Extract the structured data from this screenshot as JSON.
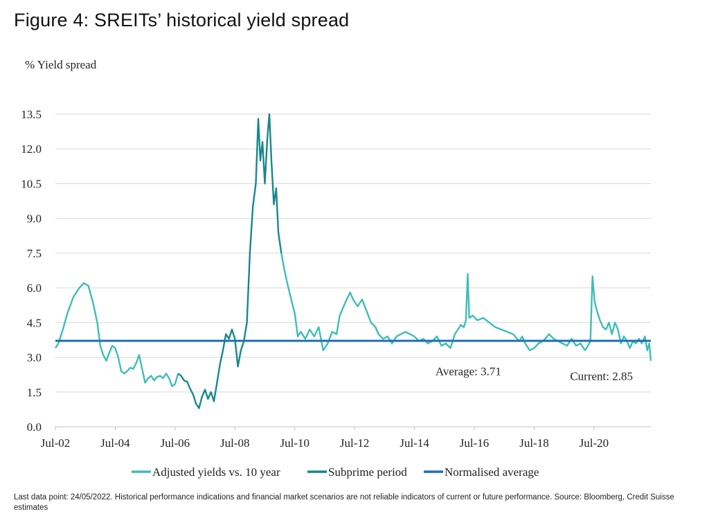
{
  "title": "Figure 4: SREITs’ historical yield spread",
  "footnote": "Last data point: 24/05/2022. Historical performance indications and financial market scenarios are not reliable indicators of current or future performance. Source: Bloomberg, Credit Suisse estimates",
  "colors": {
    "adjusted": "#3dbdb5",
    "subprime": "#17878a",
    "average": "#1f6fb5",
    "grid": "#d9d9d9"
  },
  "chart_data": {
    "type": "line",
    "ylabel": "% Yield spread",
    "ylim": [
      0,
      13.5
    ],
    "yticks": [
      "0.0",
      "1.5",
      "3.0",
      "4.5",
      "6.0",
      "7.5",
      "9.0",
      "10.5",
      "12.0",
      "13.5"
    ],
    "xlim": [
      2002.5,
      2022.4
    ],
    "xticks": [
      {
        "label": "Jul-02",
        "x": 2002.5
      },
      {
        "label": "Jul-04",
        "x": 2004.5
      },
      {
        "label": "Jul-06",
        "x": 2006.5
      },
      {
        "label": "Jul-08",
        "x": 2008.5
      },
      {
        "label": "Jul-10",
        "x": 2010.5
      },
      {
        "label": "Jul-12",
        "x": 2012.5
      },
      {
        "label": "Jul-14",
        "x": 2014.5
      },
      {
        "label": "Jul-16",
        "x": 2016.5
      },
      {
        "label": "Jul-18",
        "x": 2018.5
      },
      {
        "label": "Jul-20",
        "x": 2020.5
      }
    ],
    "grid": true,
    "legend_position": "bottom",
    "annotations": [
      {
        "text": "Average: 3.71",
        "x": 2015.2,
        "y": 2.4
      },
      {
        "text": "Current: 2.85",
        "x": 2019.7,
        "y": 2.2
      }
    ],
    "series": [
      {
        "name": "Adjusted yields vs. 10 year",
        "points": [
          [
            2002.5,
            3.4
          ],
          [
            2002.6,
            3.6
          ],
          [
            2002.75,
            4.2
          ],
          [
            2002.9,
            4.9
          ],
          [
            2003.1,
            5.6
          ],
          [
            2003.3,
            6.0
          ],
          [
            2003.45,
            6.2
          ],
          [
            2003.6,
            6.1
          ],
          [
            2003.75,
            5.4
          ],
          [
            2003.9,
            4.5
          ],
          [
            2004.0,
            3.5
          ],
          [
            2004.1,
            3.1
          ],
          [
            2004.2,
            2.85
          ],
          [
            2004.3,
            3.2
          ],
          [
            2004.4,
            3.5
          ],
          [
            2004.5,
            3.4
          ],
          [
            2004.6,
            3.0
          ],
          [
            2004.7,
            2.4
          ],
          [
            2004.8,
            2.3
          ],
          [
            2004.9,
            2.4
          ],
          [
            2005.0,
            2.55
          ],
          [
            2005.1,
            2.5
          ],
          [
            2005.2,
            2.75
          ],
          [
            2005.3,
            3.1
          ],
          [
            2005.4,
            2.5
          ],
          [
            2005.5,
            1.9
          ],
          [
            2005.6,
            2.1
          ],
          [
            2005.7,
            2.2
          ],
          [
            2005.8,
            2.0
          ],
          [
            2005.9,
            2.15
          ],
          [
            2006.0,
            2.2
          ],
          [
            2006.1,
            2.1
          ],
          [
            2006.2,
            2.3
          ],
          [
            2006.3,
            2.1
          ],
          [
            2006.4,
            1.75
          ],
          [
            2006.5,
            1.85
          ],
          [
            2006.6,
            2.3
          ]
        ]
      },
      {
        "name": "Subprime period",
        "points": [
          [
            2006.6,
            2.3
          ],
          [
            2006.7,
            2.2
          ],
          [
            2006.8,
            2.0
          ],
          [
            2006.9,
            1.95
          ],
          [
            2007.0,
            1.65
          ],
          [
            2007.1,
            1.4
          ],
          [
            2007.2,
            1.0
          ],
          [
            2007.3,
            0.8
          ],
          [
            2007.4,
            1.3
          ],
          [
            2007.5,
            1.6
          ],
          [
            2007.6,
            1.2
          ],
          [
            2007.7,
            1.5
          ],
          [
            2007.8,
            1.1
          ],
          [
            2007.9,
            1.9
          ],
          [
            2008.0,
            2.7
          ],
          [
            2008.1,
            3.3
          ],
          [
            2008.2,
            4.0
          ],
          [
            2008.3,
            3.8
          ],
          [
            2008.4,
            4.2
          ],
          [
            2008.5,
            3.8
          ],
          [
            2008.6,
            2.6
          ],
          [
            2008.7,
            3.3
          ],
          [
            2008.8,
            3.7
          ],
          [
            2008.9,
            4.5
          ],
          [
            2009.0,
            7.5
          ],
          [
            2009.1,
            9.5
          ],
          [
            2009.2,
            10.5
          ],
          [
            2009.28,
            13.3
          ],
          [
            2009.35,
            11.5
          ],
          [
            2009.42,
            12.3
          ],
          [
            2009.5,
            10.5
          ],
          [
            2009.58,
            12.4
          ],
          [
            2009.65,
            13.5
          ],
          [
            2009.72,
            11.5
          ],
          [
            2009.8,
            9.6
          ],
          [
            2009.88,
            10.3
          ],
          [
            2009.95,
            8.4
          ],
          [
            2010.05,
            7.5
          ]
        ]
      },
      {
        "name": "Adjusted yields vs. 10 year",
        "points": [
          [
            2010.05,
            7.5
          ],
          [
            2010.15,
            6.8
          ],
          [
            2010.25,
            6.2
          ],
          [
            2010.4,
            5.4
          ],
          [
            2010.5,
            4.9
          ],
          [
            2010.6,
            3.9
          ],
          [
            2010.7,
            4.1
          ],
          [
            2010.85,
            3.8
          ],
          [
            2011.0,
            4.2
          ],
          [
            2011.15,
            3.9
          ],
          [
            2011.3,
            4.3
          ],
          [
            2011.45,
            3.3
          ],
          [
            2011.6,
            3.6
          ],
          [
            2011.75,
            4.1
          ],
          [
            2011.9,
            4.0
          ],
          [
            2012.0,
            4.8
          ],
          [
            2012.2,
            5.4
          ],
          [
            2012.35,
            5.8
          ],
          [
            2012.45,
            5.5
          ],
          [
            2012.6,
            5.2
          ],
          [
            2012.75,
            5.5
          ],
          [
            2012.9,
            5.0
          ],
          [
            2013.05,
            4.5
          ],
          [
            2013.2,
            4.3
          ],
          [
            2013.3,
            4.0
          ],
          [
            2013.45,
            3.8
          ],
          [
            2013.6,
            3.9
          ],
          [
            2013.75,
            3.6
          ],
          [
            2013.9,
            3.9
          ],
          [
            2014.05,
            4.0
          ],
          [
            2014.2,
            4.1
          ],
          [
            2014.35,
            4.0
          ],
          [
            2014.5,
            3.9
          ],
          [
            2014.65,
            3.7
          ],
          [
            2014.8,
            3.8
          ],
          [
            2014.95,
            3.6
          ],
          [
            2015.1,
            3.7
          ],
          [
            2015.25,
            3.9
          ],
          [
            2015.4,
            3.5
          ],
          [
            2015.55,
            3.6
          ],
          [
            2015.7,
            3.4
          ],
          [
            2015.85,
            4.0
          ],
          [
            2015.95,
            4.2
          ],
          [
            2016.05,
            4.4
          ],
          [
            2016.15,
            4.3
          ],
          [
            2016.22,
            4.6
          ],
          [
            2016.28,
            6.6
          ],
          [
            2016.33,
            4.7
          ],
          [
            2016.45,
            4.8
          ],
          [
            2016.6,
            4.6
          ],
          [
            2016.8,
            4.7
          ],
          [
            2017.0,
            4.5
          ],
          [
            2017.2,
            4.3
          ],
          [
            2017.4,
            4.2
          ],
          [
            2017.6,
            4.1
          ],
          [
            2017.8,
            4.0
          ],
          [
            2018.0,
            3.7
          ],
          [
            2018.1,
            3.9
          ],
          [
            2018.2,
            3.6
          ],
          [
            2018.35,
            3.3
          ],
          [
            2018.5,
            3.4
          ],
          [
            2018.65,
            3.6
          ],
          [
            2018.8,
            3.7
          ],
          [
            2019.0,
            4.0
          ],
          [
            2019.15,
            3.8
          ],
          [
            2019.3,
            3.7
          ],
          [
            2019.45,
            3.6
          ],
          [
            2019.6,
            3.5
          ],
          [
            2019.75,
            3.8
          ],
          [
            2019.9,
            3.5
          ],
          [
            2020.05,
            3.6
          ],
          [
            2020.2,
            3.3
          ],
          [
            2020.3,
            3.5
          ],
          [
            2020.38,
            3.7
          ],
          [
            2020.45,
            6.5
          ],
          [
            2020.52,
            5.4
          ],
          [
            2020.6,
            5.0
          ],
          [
            2020.7,
            4.6
          ],
          [
            2020.8,
            4.3
          ],
          [
            2020.9,
            4.2
          ],
          [
            2021.0,
            4.5
          ],
          [
            2021.1,
            4.0
          ],
          [
            2021.2,
            4.5
          ],
          [
            2021.3,
            4.2
          ],
          [
            2021.4,
            3.6
          ],
          [
            2021.5,
            3.9
          ],
          [
            2021.6,
            3.7
          ],
          [
            2021.7,
            3.4
          ],
          [
            2021.8,
            3.7
          ],
          [
            2021.9,
            3.6
          ],
          [
            2022.0,
            3.8
          ],
          [
            2022.1,
            3.6
          ],
          [
            2022.2,
            3.9
          ],
          [
            2022.28,
            3.3
          ],
          [
            2022.35,
            3.6
          ],
          [
            2022.4,
            2.85
          ]
        ]
      },
      {
        "name": "Normalised average",
        "points": [
          [
            2002.5,
            3.71
          ],
          [
            2022.4,
            3.71
          ]
        ]
      }
    ],
    "legend": [
      {
        "label": "Adjusted yields vs. 10 year",
        "color_key": "adjusted"
      },
      {
        "label": "Subprime period",
        "color_key": "subprime"
      },
      {
        "label": "Normalised average",
        "color_key": "average"
      }
    ]
  }
}
